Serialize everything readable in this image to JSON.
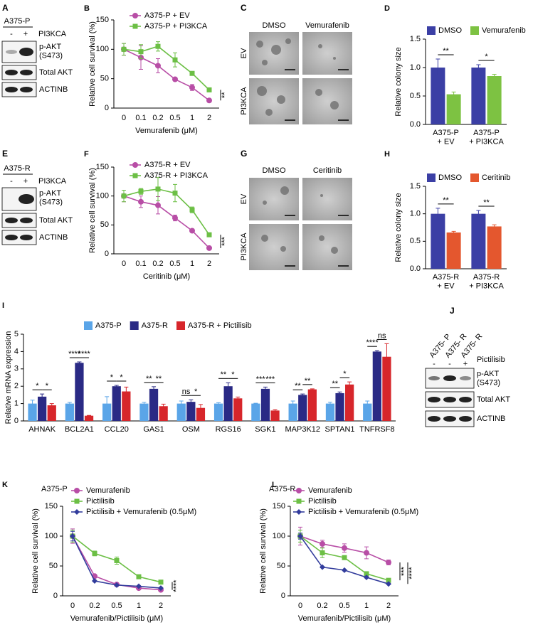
{
  "chart_data": [
    {
      "type": "line",
      "label": "B",
      "xlabel": "Vemurafenib (μM)",
      "ylabel": "Relative cell survival (%)",
      "categories": [
        "0",
        "0.1",
        "0.2",
        "0.5",
        "1",
        "2"
      ],
      "ylim": [
        0,
        150
      ],
      "yticks": [
        0,
        50,
        100,
        150
      ],
      "legend": "upper left",
      "series": [
        {
          "name": "A375-P + EV",
          "color": "#b84ea6",
          "marker": "circle",
          "values": [
            100,
            86,
            72,
            49,
            35,
            13
          ],
          "errors": [
            10,
            20,
            12,
            3,
            5,
            1
          ]
        },
        {
          "name": "A375-P + PI3KCA",
          "color": "#6cbf45",
          "marker": "square",
          "values": [
            100,
            96,
            105,
            82,
            59,
            31
          ],
          "errors": [
            10,
            12,
            8,
            12,
            3,
            1
          ]
        }
      ],
      "annotations": [
        "**"
      ]
    },
    {
      "type": "bar",
      "label": "D",
      "ylabel": "Relative colony size",
      "categories": [
        "A375-P\n+ EV",
        "A375-P\n+ PI3KCA"
      ],
      "ylim": [
        0,
        1.5
      ],
      "yticks": [
        {
          "value": 0,
          "label": "0.0"
        },
        {
          "value": 0.5,
          "label": "0.5"
        },
        {
          "value": 1,
          "label": "1.0"
        },
        {
          "value": 1.5,
          "label": "1.5"
        }
      ],
      "legend": "top",
      "series": [
        {
          "name": "DMSO",
          "color": "#3b3fa5",
          "values": [
            1.0,
            1.0
          ],
          "errors": [
            0.15,
            0.05
          ]
        },
        {
          "name": "Vemurafenib",
          "color": "#7dc242",
          "values": [
            0.53,
            0.85
          ],
          "errors": [
            0.04,
            0.03
          ]
        }
      ],
      "annotations": [
        [
          "**"
        ],
        [
          "*"
        ]
      ]
    },
    {
      "type": "line",
      "label": "F",
      "xlabel": "Ceritinib (μM)",
      "ylabel": "Relative cell survival (%)",
      "categories": [
        "0",
        "0.1",
        "0.2",
        "0.5",
        "1",
        "2"
      ],
      "ylim": [
        0,
        150
      ],
      "yticks": [
        0,
        50,
        100,
        150
      ],
      "legend": "upper left",
      "series": [
        {
          "name": "A375-R + EV",
          "color": "#b84ea6",
          "marker": "circle",
          "values": [
            100,
            90,
            84,
            62,
            40,
            10
          ],
          "errors": [
            10,
            10,
            15,
            5,
            3,
            1
          ]
        },
        {
          "name": "A375-R + PI3KCA",
          "color": "#6cbf45",
          "marker": "square",
          "values": [
            100,
            108,
            112,
            105,
            76,
            33
          ],
          "errors": [
            10,
            5,
            20,
            15,
            5,
            2
          ]
        }
      ],
      "annotations": [
        "***"
      ]
    },
    {
      "type": "bar",
      "label": "H",
      "ylabel": "Relative colony size",
      "categories": [
        "A375-R\n+ EV",
        "A375-R\n+ PI3KCA"
      ],
      "ylim": [
        0,
        1.5
      ],
      "yticks": [
        {
          "value": 0,
          "label": "0.0"
        },
        {
          "value": 0.5,
          "label": "0.5"
        },
        {
          "value": 1,
          "label": "1.0"
        },
        {
          "value": 1.5,
          "label": "1.5"
        }
      ],
      "legend": "top",
      "series": [
        {
          "name": "DMSO",
          "color": "#3b3fa5",
          "values": [
            1.0,
            1.0
          ],
          "errors": [
            0.1,
            0.06
          ]
        },
        {
          "name": "Ceritinib",
          "color": "#e4572e",
          "values": [
            0.66,
            0.77
          ],
          "errors": [
            0.02,
            0.03
          ]
        }
      ],
      "annotations": [
        [
          "**"
        ],
        [
          "**"
        ]
      ]
    },
    {
      "type": "bar",
      "label": "I",
      "ylabel": "Relative mRNA expression",
      "categories": [
        "AHNAK",
        "BCL2A1",
        "CCL20",
        "GAS1",
        "OSM",
        "RGS16",
        "SGK1",
        "MAP3K12",
        "SPTAN1",
        "TNFRSF8"
      ],
      "ylim": [
        0,
        5
      ],
      "yticks": [
        0,
        1,
        2,
        3,
        4,
        5
      ],
      "legend": "top",
      "series": [
        {
          "name": "A375-P",
          "color": "#5aa5e8",
          "values": [
            1.0,
            1.0,
            1.0,
            1.0,
            1.0,
            1.0,
            1.0,
            1.0,
            1.0,
            1.0
          ],
          "errors": [
            0.2,
            0.07,
            0.4,
            0.07,
            0.15,
            0.05,
            0.02,
            0.15,
            0.08,
            0.15
          ]
        },
        {
          "name": "A375-R",
          "color": "#2a2a85",
          "values": [
            1.4,
            3.35,
            2.0,
            1.85,
            1.1,
            2.0,
            1.85,
            1.5,
            1.6,
            4.0
          ],
          "errors": [
            0.15,
            0.05,
            0.05,
            0.12,
            0.12,
            0.2,
            0.1,
            0.05,
            0.07,
            0.05
          ]
        },
        {
          "name": "A375-R + Pictilisib",
          "color": "#d7262b",
          "values": [
            0.9,
            0.3,
            1.7,
            0.85,
            0.75,
            1.3,
            0.6,
            1.82,
            2.1,
            3.7
          ],
          "errors": [
            0.1,
            0.02,
            0.25,
            0.12,
            0.2,
            0.08,
            0.05,
            0.03,
            0.15,
            0.75
          ]
        }
      ],
      "annotations": [
        [
          "*",
          "*"
        ],
        [
          "****",
          "****"
        ],
        [
          "*",
          "*"
        ],
        [
          "**",
          "**"
        ],
        [
          "ns",
          "*"
        ],
        [
          "**",
          "*"
        ],
        [
          "***",
          "***"
        ],
        [
          "**",
          "**"
        ],
        [
          "**",
          "*"
        ],
        [
          "****",
          "ns"
        ]
      ]
    },
    {
      "type": "line",
      "label": "K",
      "title": "A375-P",
      "xlabel": "Vemurafenib/Pictilisib (μM)",
      "ylabel": "Relative cell survival (%)",
      "categories": [
        "0",
        "0.2",
        "0.5",
        "1",
        "2"
      ],
      "ylim": [
        0,
        150
      ],
      "yticks": [
        0,
        50,
        100,
        150
      ],
      "legend": "upper left",
      "series": [
        {
          "name": "Vemurafenib",
          "color": "#b84ea6",
          "marker": "circle",
          "values": [
            100,
            33,
            19,
            13,
            10
          ],
          "errors": [
            12,
            2,
            2,
            2,
            1
          ]
        },
        {
          "name": "Pictilisib",
          "color": "#6cbf45",
          "marker": "square",
          "values": [
            100,
            71,
            59,
            32,
            23
          ],
          "errors": [
            10,
            4,
            6,
            2,
            2
          ]
        },
        {
          "name": "Pictilisib + Vemurafenib (0.5μM)",
          "color": "#323c9c",
          "marker": "diamond",
          "values": [
            100,
            25,
            18,
            16,
            13
          ],
          "errors": [
            8,
            1,
            1,
            1,
            1
          ]
        }
      ],
      "annotations": [
        "****"
      ]
    },
    {
      "type": "line",
      "label": "L",
      "title": "A375-R",
      "xlabel": "Vemurafenib/Pictilisib (μM)",
      "ylabel": "Relative cell survival (%)",
      "categories": [
        "0",
        "0.2",
        "0.5",
        "1",
        "2"
      ],
      "ylim": [
        0,
        150
      ],
      "yticks": [
        0,
        50,
        100,
        150
      ],
      "legend": "upper left",
      "series": [
        {
          "name": "Vemurafenib",
          "color": "#b84ea6",
          "marker": "circle",
          "values": [
            100,
            87,
            80,
            72,
            56
          ],
          "errors": [
            15,
            6,
            7,
            10,
            4
          ]
        },
        {
          "name": "Pictilisib",
          "color": "#6cbf45",
          "marker": "square",
          "values": [
            100,
            72,
            64,
            37,
            26
          ],
          "errors": [
            10,
            8,
            3,
            2,
            2
          ]
        },
        {
          "name": "Pictilisib + Vemurafenib (0.5μM)",
          "color": "#323c9c",
          "marker": "diamond",
          "values": [
            100,
            48,
            43,
            31,
            20
          ],
          "errors": [
            5,
            1,
            1,
            1,
            1
          ]
        }
      ],
      "annotations": [
        "***",
        "****"
      ]
    }
  ],
  "blots": {
    "A": {
      "label": "A",
      "cell_line": "A375-P",
      "lanes": [
        "-",
        "+"
      ],
      "treatment": "PI3KCA",
      "rows": [
        "p-AKT\n(S473)",
        "Total AKT",
        "ACTINB"
      ]
    },
    "E": {
      "label": "E",
      "cell_line": "A375-R",
      "lanes": [
        "-",
        "+"
      ],
      "treatment": "PI3KCA",
      "rows": [
        "p-AKT\n(S473)",
        "Total AKT",
        "ACTINB"
      ]
    },
    "J": {
      "label": "J",
      "cell_lines": [
        "A375- P",
        "A375- R",
        "A375- R"
      ],
      "lanes": [
        "-",
        "-",
        "+"
      ],
      "treatment": "Pictilisib",
      "rows": [
        "p-AKT\n(S473)",
        "Total AKT",
        "ACTINB"
      ]
    }
  },
  "images": {
    "C": {
      "label": "C",
      "columns": [
        "DMSO",
        "Vemurafenib"
      ],
      "rows": [
        "EV",
        "PI3KCA"
      ]
    },
    "G": {
      "label": "G",
      "columns": [
        "DMSO",
        "Ceritinib"
      ],
      "rows": [
        "EV",
        "PI3KCA"
      ]
    }
  }
}
